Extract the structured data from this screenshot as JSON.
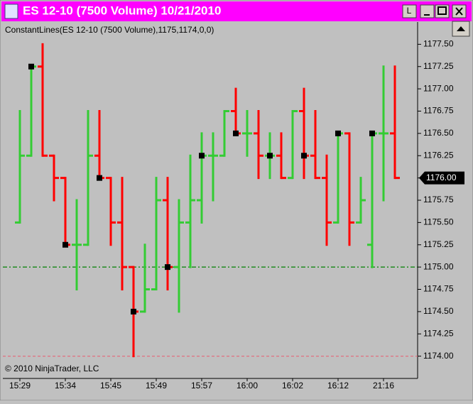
{
  "chart_data": {
    "type": "ohlc",
    "title": "ES 12-10 (7500 Volume)  10/21/2010",
    "toolbar_button": "L",
    "indicator_label": "ConstantLines(ES  12-10  (7500  Volume),1175,1174,0,0)",
    "copyright": "© 2010 NinjaTrader, LLC",
    "categories": [
      "15:29",
      null,
      null,
      null,
      "15:34",
      null,
      null,
      null,
      "15:45",
      null,
      null,
      null,
      "15:49",
      null,
      null,
      null,
      "15:57",
      null,
      null,
      null,
      "16:00",
      null,
      null,
      null,
      "16:02",
      null,
      null,
      null,
      "16:12",
      null,
      null,
      null,
      "21:16",
      null
    ],
    "open": [
      1175.5,
      1176.25,
      1177.25,
      1176.25,
      1176.0,
      1175.25,
      1175.25,
      1176.25,
      1176.0,
      1175.5,
      1175.0,
      1174.5,
      1174.75,
      1175.75,
      1175.0,
      1175.5,
      1175.75,
      1176.25,
      1176.25,
      1176.75,
      1176.5,
      1176.5,
      1176.25,
      1176.25,
      1176.0,
      1176.75,
      1176.25,
      1176.0,
      1175.5,
      1176.5,
      1175.5,
      1175.25,
      1176.5,
      1176.5
    ],
    "high": [
      1176.75,
      1177.25,
      1177.5,
      1176.25,
      1176.0,
      1175.75,
      1176.75,
      1176.75,
      1176.0,
      1176.0,
      1175.0,
      1175.25,
      1176.0,
      1176.0,
      1175.75,
      1176.25,
      1176.5,
      1176.5,
      1176.75,
      1177.0,
      1176.75,
      1176.75,
      1176.5,
      1176.5,
      1176.75,
      1177.0,
      1176.75,
      1176.25,
      1176.5,
      1176.5,
      1176.0,
      1176.5,
      1177.25,
      1177.25
    ],
    "low": [
      1175.5,
      1176.25,
      1176.25,
      1175.75,
      1175.25,
      1174.75,
      1175.25,
      1176.0,
      1175.25,
      1174.75,
      1174.0,
      1174.5,
      1174.75,
      1174.75,
      1174.5,
      1175.0,
      1175.5,
      1175.75,
      1176.25,
      1176.5,
      1176.25,
      1176.0,
      1176.0,
      1176.0,
      1176.0,
      1176.0,
      1176.0,
      1175.25,
      1175.5,
      1175.25,
      1175.5,
      1175.0,
      1175.75,
      1176.0
    ],
    "close": [
      1176.25,
      1177.25,
      1176.25,
      1176.0,
      1175.25,
      1175.25,
      1176.25,
      1176.0,
      1175.5,
      1175.0,
      1174.5,
      1174.75,
      1175.75,
      1175.0,
      1175.5,
      1175.75,
      1176.25,
      1176.25,
      1176.75,
      1176.5,
      1176.5,
      1176.25,
      1176.25,
      1176.0,
      1176.75,
      1176.25,
      1176.0,
      1175.5,
      1176.5,
      1175.5,
      1175.75,
      1176.5,
      1176.5,
      1176.0
    ],
    "markers": [
      null,
      1177.25,
      null,
      null,
      1175.25,
      null,
      null,
      1176.0,
      null,
      null,
      1174.5,
      null,
      null,
      1175.0,
      null,
      null,
      1176.25,
      null,
      null,
      1176.5,
      null,
      null,
      1176.25,
      null,
      null,
      1176.25,
      null,
      null,
      1176.5,
      null,
      null,
      1176.5,
      null,
      null
    ],
    "up_color": "#33cc33",
    "down_color": "#ff0000",
    "marker_color": "#000000",
    "ylim": [
      1173.75,
      1177.75
    ],
    "yticks": [
      {
        "value": 1174,
        "label": "1174.00"
      },
      {
        "value": 1174.25,
        "label": "1174.25"
      },
      {
        "value": 1174.5,
        "label": "1174.50"
      },
      {
        "value": 1174.75,
        "label": "1174.75"
      },
      {
        "value": 1175,
        "label": "1175.00"
      },
      {
        "value": 1175.25,
        "label": "1175.25"
      },
      {
        "value": 1175.5,
        "label": "1175.50"
      },
      {
        "value": 1175.75,
        "label": "1175.75"
      },
      {
        "value": 1176,
        "label": "1176.00"
      },
      {
        "value": 1176.25,
        "label": "1176.25"
      },
      {
        "value": 1176.5,
        "label": "1176.50"
      },
      {
        "value": 1176.75,
        "label": "1176.75"
      },
      {
        "value": 1177,
        "label": "1177.00"
      },
      {
        "value": 1177.25,
        "label": "1177.25"
      },
      {
        "value": 1177.5,
        "label": "1177.50"
      }
    ],
    "constant_lines": [
      {
        "value": 1175,
        "color": "#008000",
        "style": "dash-dot"
      },
      {
        "value": 1174,
        "color": "#e07080",
        "style": "dashed"
      }
    ],
    "last_price": {
      "value": 1176,
      "label": "1176.00"
    }
  }
}
